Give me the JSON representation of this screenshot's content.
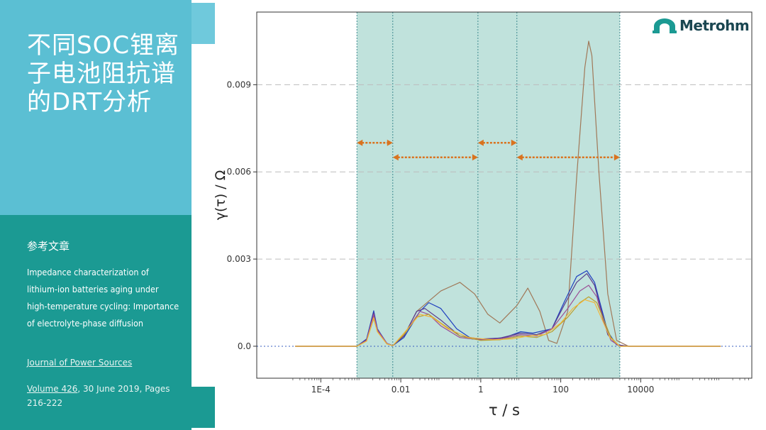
{
  "slide": {
    "title": "不同SOC锂离子电池阻抗谱的DRT分析",
    "ref_heading": "参考文章",
    "ref_title": "Impedance characterization of lithium-ion batteries aging under high-temperature cycling: Importance of electrolyte-phase diffusion",
    "journal": "Journal of Power Sources",
    "volume_link": "Volume 426",
    "volume_rest": ", 30 June 2019, Pages 216-222",
    "logo": "Metrohm",
    "colors": {
      "panel_top": "#5bbfd3",
      "panel_bottom": "#1b9a93",
      "shade": "#b5ddd6",
      "arrow": "#d9731f",
      "logo": "#1a4651"
    }
  },
  "chart_data": {
    "type": "line",
    "xlabel": "τ / s",
    "ylabel": "γ(τ) / Ω",
    "xscale": "log",
    "xlim": [
      2.5e-06,
      6000000
    ],
    "ylim": [
      -0.0011,
      0.0115
    ],
    "x_ticks": [
      0.0001,
      0.01,
      1,
      100,
      10000
    ],
    "x_tick_labels": [
      "1E-4",
      "0.01",
      "1",
      "100",
      "10000"
    ],
    "y_ticks": [
      0,
      0.003,
      0.006,
      0.009
    ],
    "y_tick_labels": [
      "0.0",
      "0.003",
      "0.006",
      "0.009"
    ],
    "grid": "horizontal dashed",
    "shaded_range": [
      0.0008,
      3000
    ],
    "region_boundaries": [
      0.0008,
      0.0063,
      0.85,
      8,
      3000
    ],
    "arrows": [
      {
        "from": 0.0008,
        "to": 0.0063,
        "y": 0.007
      },
      {
        "from": 0.0063,
        "to": 0.85,
        "y": 0.0065
      },
      {
        "from": 0.85,
        "to": 8,
        "y": 0.007
      },
      {
        "from": 8,
        "to": 3000,
        "y": 0.0065
      }
    ],
    "series": [
      {
        "color": "#a07858",
        "points": [
          [
            2.3e-05,
            0
          ],
          [
            0.0008,
            0
          ],
          [
            0.0014,
            0.00022
          ],
          [
            0.0021,
            0.00105
          ],
          [
            0.0026,
            0.00055
          ],
          [
            0.0045,
            8e-05
          ],
          [
            0.0063,
            2e-05
          ],
          [
            0.012,
            0.00035
          ],
          [
            0.025,
            0.0012
          ],
          [
            0.1,
            0.0019
          ],
          [
            0.3,
            0.0022
          ],
          [
            0.7,
            0.0018
          ],
          [
            1.5,
            0.0011
          ],
          [
            3,
            0.0008
          ],
          [
            8,
            0.0014
          ],
          [
            15,
            0.002
          ],
          [
            30,
            0.0012
          ],
          [
            50,
            0.0002
          ],
          [
            80,
            0.0001
          ],
          [
            150,
            0.0012
          ],
          [
            250,
            0.0058
          ],
          [
            400,
            0.0096
          ],
          [
            500,
            0.0105
          ],
          [
            600,
            0.01
          ],
          [
            900,
            0.006
          ],
          [
            1500,
            0.0018
          ],
          [
            2500,
            0.0002
          ],
          [
            5000,
            0
          ],
          [
            1000000,
            0
          ]
        ]
      },
      {
        "color": "#1f3fbf",
        "points": [
          [
            2.3e-05,
            0
          ],
          [
            0.0008,
            0
          ],
          [
            0.0014,
            0.00025
          ],
          [
            0.0021,
            0.00122
          ],
          [
            0.0026,
            0.0006
          ],
          [
            0.0045,
            0.0001
          ],
          [
            0.0063,
            2e-05
          ],
          [
            0.012,
            0.0003
          ],
          [
            0.03,
            0.0012
          ],
          [
            0.05,
            0.0015
          ],
          [
            0.1,
            0.0013
          ],
          [
            0.25,
            0.0006
          ],
          [
            0.6,
            0.00025
          ],
          [
            1.5,
            0.00025
          ],
          [
            4,
            0.0003
          ],
          [
            10,
            0.0005
          ],
          [
            20,
            0.00045
          ],
          [
            60,
            0.0006
          ],
          [
            120,
            0.0015
          ],
          [
            250,
            0.0024
          ],
          [
            450,
            0.0026
          ],
          [
            700,
            0.0022
          ],
          [
            1000,
            0.0014
          ],
          [
            1500,
            0.0005
          ],
          [
            2500,
            5e-05
          ],
          [
            5000,
            0
          ],
          [
            1000000,
            0
          ]
        ]
      },
      {
        "color": "#5a3a8c",
        "points": [
          [
            2.3e-05,
            0
          ],
          [
            0.0008,
            0
          ],
          [
            0.0014,
            0.00023
          ],
          [
            0.0021,
            0.00115
          ],
          [
            0.0026,
            0.00058
          ],
          [
            0.0045,
            0.0001
          ],
          [
            0.0063,
            2e-05
          ],
          [
            0.012,
            0.00035
          ],
          [
            0.025,
            0.0012
          ],
          [
            0.04,
            0.0013
          ],
          [
            0.1,
            0.0009
          ],
          [
            0.3,
            0.00035
          ],
          [
            1,
            0.00025
          ],
          [
            3,
            0.00028
          ],
          [
            10,
            0.00045
          ],
          [
            25,
            0.0004
          ],
          [
            60,
            0.0006
          ],
          [
            120,
            0.0014
          ],
          [
            250,
            0.0022
          ],
          [
            450,
            0.0025
          ],
          [
            700,
            0.0021
          ],
          [
            1000,
            0.0013
          ],
          [
            1500,
            0.0004
          ],
          [
            2500,
            5e-05
          ],
          [
            5000,
            0
          ],
          [
            1000000,
            0
          ]
        ]
      },
      {
        "color": "#9b4f96",
        "points": [
          [
            2.3e-05,
            0
          ],
          [
            0.0008,
            0
          ],
          [
            0.0014,
            0.0002
          ],
          [
            0.0021,
            0.0011
          ],
          [
            0.0026,
            0.00056
          ],
          [
            0.0045,
            0.0001
          ],
          [
            0.0063,
            2e-05
          ],
          [
            0.012,
            0.0004
          ],
          [
            0.03,
            0.0012
          ],
          [
            0.05,
            0.0011
          ],
          [
            0.1,
            0.0007
          ],
          [
            0.3,
            0.0003
          ],
          [
            1,
            0.00022
          ],
          [
            3,
            0.00025
          ],
          [
            10,
            0.0004
          ],
          [
            25,
            0.00035
          ],
          [
            60,
            0.0006
          ],
          [
            150,
            0.0013
          ],
          [
            300,
            0.0019
          ],
          [
            500,
            0.0021
          ],
          [
            800,
            0.0017
          ],
          [
            1200,
            0.0008
          ],
          [
            1800,
            0.0002
          ],
          [
            3000,
            0
          ],
          [
            1000000,
            0
          ]
        ]
      },
      {
        "color": "#b9a02e",
        "points": [
          [
            2.3e-05,
            0
          ],
          [
            0.0008,
            0
          ],
          [
            0.0014,
            0.00018
          ],
          [
            0.0021,
            0.00095
          ],
          [
            0.0026,
            0.0005
          ],
          [
            0.0045,
            8e-05
          ],
          [
            0.0063,
            2e-05
          ],
          [
            0.012,
            0.0004
          ],
          [
            0.025,
            0.001
          ],
          [
            0.05,
            0.0011
          ],
          [
            0.1,
            0.0008
          ],
          [
            0.3,
            0.00035
          ],
          [
            1,
            0.0002
          ],
          [
            3,
            0.00022
          ],
          [
            10,
            0.00035
          ],
          [
            25,
            0.0003
          ],
          [
            60,
            0.0005
          ],
          [
            150,
            0.001
          ],
          [
            300,
            0.0015
          ],
          [
            500,
            0.0017
          ],
          [
            800,
            0.0015
          ],
          [
            1200,
            0.0009
          ],
          [
            1800,
            0.0003
          ],
          [
            3000,
            0
          ],
          [
            1000000,
            0
          ]
        ]
      },
      {
        "color": "#f2b63a",
        "points": [
          [
            2.3e-05,
            0
          ],
          [
            0.0008,
            0
          ],
          [
            0.0014,
            0.00018
          ],
          [
            0.0021,
            0.00098
          ],
          [
            0.0026,
            0.0005
          ],
          [
            0.0045,
            8e-05
          ],
          [
            0.0063,
            2e-05
          ],
          [
            0.012,
            0.00045
          ],
          [
            0.03,
            0.0011
          ],
          [
            0.06,
            0.001
          ],
          [
            0.15,
            0.0006
          ],
          [
            0.5,
            0.0003
          ],
          [
            2,
            0.00022
          ],
          [
            6,
            0.00025
          ],
          [
            15,
            0.00035
          ],
          [
            40,
            0.0004
          ],
          [
            100,
            0.0008
          ],
          [
            200,
            0.0013
          ],
          [
            400,
            0.0016
          ],
          [
            700,
            0.0015
          ],
          [
            1100,
            0.0009
          ],
          [
            1700,
            0.0003
          ],
          [
            3000,
            0
          ],
          [
            1000000,
            0
          ]
        ]
      }
    ]
  }
}
